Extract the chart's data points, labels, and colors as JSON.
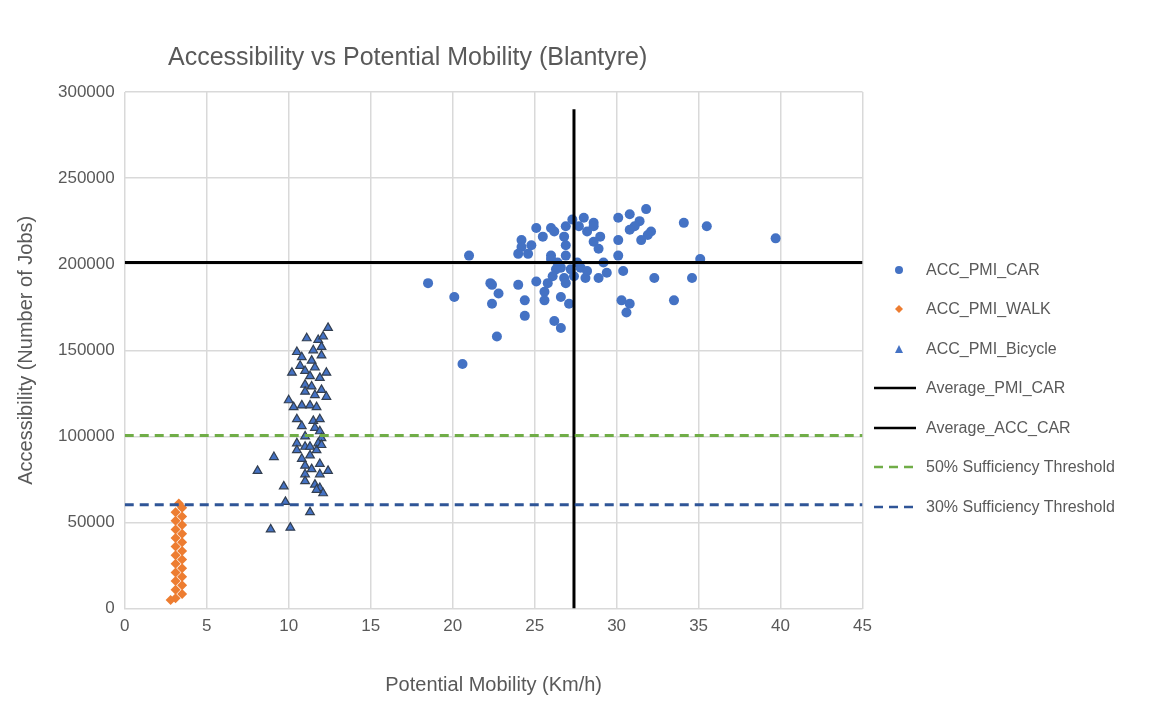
{
  "chart_data": {
    "type": "scatter",
    "title": "Accessibility vs Potential Mobility (Blantyre)",
    "xlabel": "Potential Mobility (Km/h)",
    "ylabel": "Accessibility (Number of Jobs)",
    "xlim": [
      0,
      45
    ],
    "xticks": [
      0,
      5,
      10,
      15,
      20,
      25,
      30,
      35,
      40,
      45
    ],
    "ylim": [
      0,
      300000
    ],
    "yticks": [
      0,
      50000,
      100000,
      150000,
      200000,
      250000,
      300000
    ],
    "grid": true,
    "legend": "right",
    "series": [
      {
        "name": "ACC_PMI_CAR",
        "color": "#4472c4",
        "marker": "circle",
        "x": [
          39.7,
          35.5,
          34.1,
          31.8,
          30.8,
          30.1,
          31.4,
          31.1,
          30.8,
          32.1,
          31.9,
          31.5,
          30.1,
          30.1,
          35.1,
          29.2,
          30.4,
          32.3,
          34.6,
          29.4,
          28.9,
          28.1,
          30.3,
          30.8,
          30.6,
          33.5,
          28.0,
          27.3,
          28.6,
          28.6,
          27.7,
          28.2,
          29.0,
          26.9,
          26.8,
          26.9,
          26.0,
          26.2,
          25.1,
          25.5,
          24.8,
          24.2,
          24.2,
          24.0,
          24.6,
          21.0,
          28.6,
          28.9,
          26.0,
          26.0,
          26.9,
          26.4,
          26.6,
          26.3,
          27.6,
          27.8,
          28.2,
          27.2,
          27.4,
          26.1,
          26.8,
          26.9,
          25.8,
          25.6,
          25.6,
          26.6,
          27.1,
          25.1,
          24.0,
          24.4,
          24.4,
          22.8,
          22.3,
          22.4,
          22.4,
          22.7,
          26.2,
          26.6,
          20.1,
          18.5,
          20.6
        ],
        "values": [
          215000,
          222000,
          224000,
          232000,
          229000,
          227000,
          225000,
          222000,
          220000,
          219000,
          217000,
          214000,
          214000,
          205000,
          203000,
          201000,
          196000,
          192000,
          192000,
          195000,
          192000,
          192000,
          179000,
          177000,
          172000,
          179000,
          227000,
          226000,
          224000,
          222000,
          222000,
          219000,
          216000,
          222000,
          216000,
          211000,
          221000,
          219000,
          221000,
          216000,
          211000,
          214000,
          210000,
          206000,
          206000,
          205000,
          213000,
          209000,
          205000,
          203000,
          205000,
          201000,
          198000,
          197000,
          201000,
          198000,
          196000,
          197000,
          193000,
          193000,
          192000,
          189000,
          189000,
          184000,
          179000,
          181000,
          177000,
          190000,
          188000,
          179000,
          170000,
          183000,
          189000,
          188000,
          177000,
          158000,
          167000,
          163000,
          181000,
          189000,
          142000
        ]
      },
      {
        "name": "ACC_PMI_WALK",
        "color": "#ed7d31",
        "marker": "diamond",
        "x": [
          3.3,
          3.5,
          3.1,
          3.5,
          3.1,
          3.5,
          3.1,
          3.5,
          3.1,
          3.5,
          3.1,
          3.5,
          3.1,
          3.5,
          3.1,
          3.5,
          3.1,
          3.5,
          3.1,
          3.5,
          3.1,
          3.5,
          3.1,
          2.8
        ],
        "values": [
          61000,
          58500,
          56000,
          53500,
          51000,
          48500,
          46000,
          43500,
          41000,
          38500,
          36000,
          33500,
          31000,
          28500,
          26000,
          23500,
          21000,
          18500,
          16000,
          13500,
          11000,
          8500,
          6000,
          5000
        ]
      },
      {
        "name": "ACC_PMI_Bicycle",
        "color": "#4472c4",
        "marker": "triangle",
        "x": [
          12.4,
          11.1,
          11.8,
          12.1,
          10.5,
          10.8,
          11.5,
          12.0,
          12.0,
          11.4,
          10.7,
          11.6,
          10.2,
          12.3,
          11.0,
          11.3,
          11.9,
          11.0,
          11.4,
          12.0,
          11.0,
          11.6,
          12.3,
          10.0,
          10.3,
          10.8,
          11.3,
          11.7,
          10.5,
          11.5,
          11.9,
          10.8,
          11.6,
          11.9,
          11.0,
          12.0,
          11.8,
          10.5,
          10.5,
          11.0,
          11.3,
          11.7,
          12.0,
          11.3,
          10.8,
          9.1,
          11.0,
          11.9,
          11.4,
          12.4,
          8.1,
          11.9,
          11.0,
          11.0,
          11.6,
          11.9,
          12.1,
          11.7,
          9.7,
          9.8,
          11.3,
          8.9,
          10.1
        ],
        "values": [
          163000,
          157000,
          156000,
          158000,
          149000,
          146000,
          150000,
          152000,
          147000,
          144000,
          141000,
          140000,
          137000,
          137000,
          138000,
          135000,
          134000,
          130000,
          129000,
          127000,
          126000,
          124000,
          123000,
          121000,
          117000,
          118000,
          118000,
          117000,
          110000,
          109000,
          110000,
          106000,
          105000,
          103000,
          100000,
          99000,
          96000,
          96000,
          92000,
          94000,
          94000,
          92000,
          95000,
          89000,
          87000,
          88000,
          83000,
          84000,
          81000,
          80000,
          80000,
          78000,
          78000,
          74000,
          72000,
          70000,
          67000,
          69000,
          71000,
          62000,
          56000,
          46000,
          47000
        ]
      },
      {
        "name": "Average_PMI_CAR",
        "type": "line",
        "color": "#000000",
        "line_style": "solid",
        "x": [
          27.4,
          27.4
        ],
        "values": [
          0,
          290000
        ]
      },
      {
        "name": "Average_ACC_CAR",
        "type": "line",
        "color": "#000000",
        "line_style": "solid",
        "x": [
          0,
          45
        ],
        "values": [
          201000,
          201000
        ]
      },
      {
        "name": "50% Sufficiency Threshold",
        "type": "line",
        "color": "#70ad47",
        "line_style": "dashed",
        "x": [
          0,
          45
        ],
        "values": [
          100500,
          100500
        ]
      },
      {
        "name": "30% Sufficiency Threshold",
        "type": "line",
        "color": "#2f5597",
        "line_style": "dashed",
        "x": [
          0,
          45
        ],
        "values": [
          60300,
          60300
        ]
      }
    ]
  }
}
